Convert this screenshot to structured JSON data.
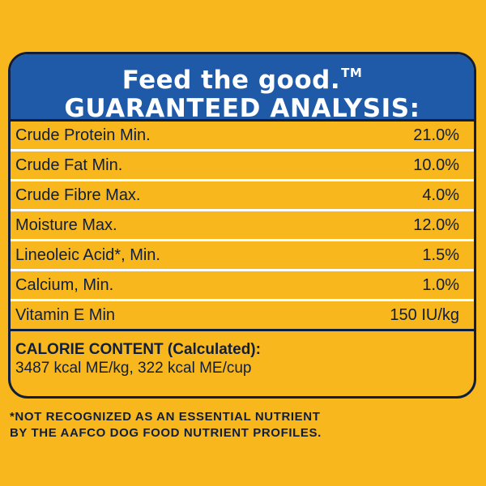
{
  "header": {
    "tagline": "Feed the good.",
    "trademark": "TM",
    "title": "GUARANTEED ANALYSIS:"
  },
  "analysis": [
    {
      "label": "Crude Protein Min.",
      "value": "21.0%"
    },
    {
      "label": "Crude Fat Min.",
      "value": "10.0%"
    },
    {
      "label": "Crude Fibre Max.",
      "value": "4.0%"
    },
    {
      "label": "Moisture Max.",
      "value": "12.0%"
    },
    {
      "label": "Lineoleic Acid*, Min.",
      "value": "1.5%"
    },
    {
      "label": "Calcium, Min.",
      "value": "1.0%"
    },
    {
      "label": "Vitamin E Min",
      "value": "150 IU/kg"
    }
  ],
  "calorie": {
    "title": "CALORIE CONTENT",
    "qualifier": "(Calculated):",
    "value": "3487 kcal ME/kg, 322 kcal ME/cup"
  },
  "footnote": {
    "line1": "*NOT RECOGNIZED AS AN ESSENTIAL NUTRIENT",
    "line2": "BY THE AAFCO DOG FOOD NUTRIENT PROFILES."
  },
  "colors": {
    "background": "#F7B71D",
    "header": "#1E5AA8",
    "text": "#0f1e3c",
    "divider": "#ffffff"
  }
}
